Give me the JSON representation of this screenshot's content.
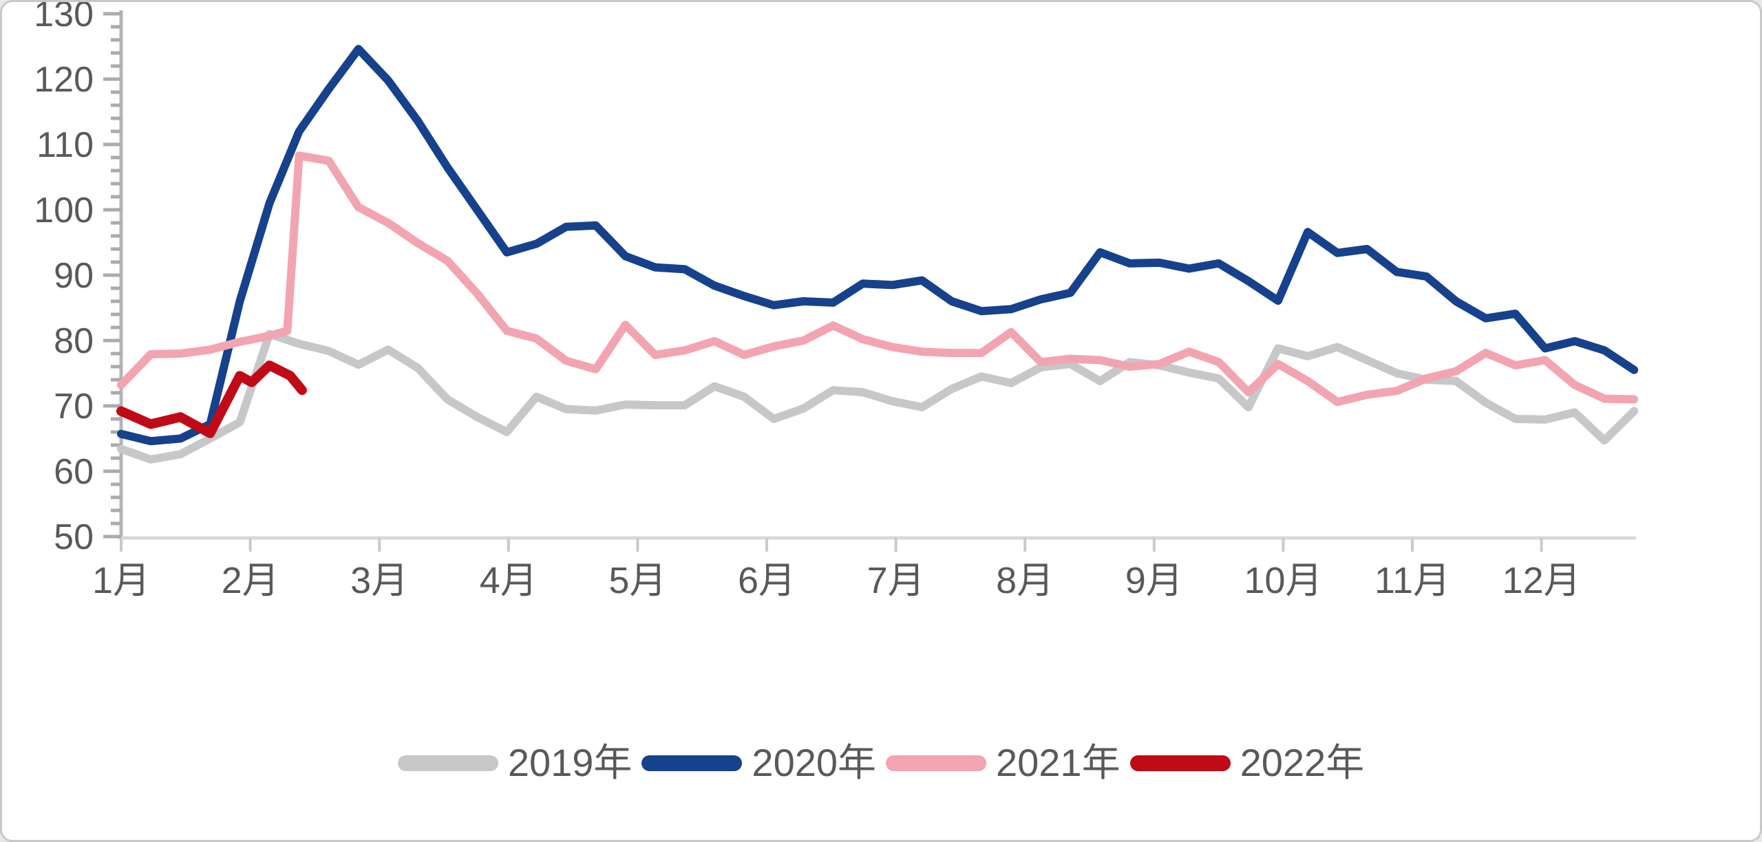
{
  "chart_data": {
    "type": "line",
    "title": "",
    "xlabel": "",
    "ylabel": "",
    "x_axis": {
      "unit": "month",
      "tick_labels": [
        "1月",
        "2月",
        "3月",
        "4月",
        "5月",
        "6月",
        "7月",
        "8月",
        "9月",
        "10月",
        "11月",
        "12月"
      ]
    },
    "y_axis": {
      "min": 50,
      "max": 130,
      "major_step": 10,
      "minor_step": 2,
      "tick_labels": [
        "50",
        "60",
        "70",
        "80",
        "90",
        "100",
        "110",
        "120",
        "130"
      ]
    },
    "grid": "off",
    "legend_position": "bottom-center",
    "sampling": "weekly values, x = week index 0..51 across Jan-Dec",
    "series": [
      {
        "name": "2019年",
        "color": "#c6c7c9",
        "points": [
          [
            0,
            63.4
          ],
          [
            1,
            61.8
          ],
          [
            2,
            62.6
          ],
          [
            3,
            65.0
          ],
          [
            4,
            67.5
          ],
          [
            5,
            81.0
          ],
          [
            6,
            79.5
          ],
          [
            7,
            78.4
          ],
          [
            8,
            76.3
          ],
          [
            9,
            78.6
          ],
          [
            10,
            75.8
          ],
          [
            11,
            71.0
          ],
          [
            12,
            68.3
          ],
          [
            13,
            66.0
          ],
          [
            14,
            71.4
          ],
          [
            15,
            69.5
          ],
          [
            16,
            69.3
          ],
          [
            17,
            70.2
          ],
          [
            18,
            70.1
          ],
          [
            19,
            70.1
          ],
          [
            20,
            73.0
          ],
          [
            21,
            71.4
          ],
          [
            22,
            68.0
          ],
          [
            23,
            69.6
          ],
          [
            24,
            72.4
          ],
          [
            25,
            72.1
          ],
          [
            26,
            70.7
          ],
          [
            27,
            69.8
          ],
          [
            28,
            72.6
          ],
          [
            29,
            74.5
          ],
          [
            30,
            73.5
          ],
          [
            31,
            75.9
          ],
          [
            32,
            76.4
          ],
          [
            33,
            73.8
          ],
          [
            34,
            76.7
          ],
          [
            35,
            76.2
          ],
          [
            36,
            75.1
          ],
          [
            37,
            74.2
          ],
          [
            38,
            69.8
          ],
          [
            39,
            78.8
          ],
          [
            40,
            77.6
          ],
          [
            41,
            79.0
          ],
          [
            42,
            77.0
          ],
          [
            43,
            75.0
          ],
          [
            44,
            74.0
          ],
          [
            45,
            73.8
          ],
          [
            46,
            70.5
          ],
          [
            47,
            68.0
          ],
          [
            48,
            67.9
          ],
          [
            49,
            69.0
          ],
          [
            50,
            64.7
          ],
          [
            51,
            69.2
          ]
        ]
      },
      {
        "name": "2020年",
        "color": "#16418c",
        "points": [
          [
            0,
            65.7
          ],
          [
            1,
            64.6
          ],
          [
            2,
            65.0
          ],
          [
            3,
            67.2
          ],
          [
            4,
            86.0
          ],
          [
            5,
            101.0
          ],
          [
            6,
            112.0
          ],
          [
            7,
            118.5
          ],
          [
            8,
            124.6
          ],
          [
            9,
            119.8
          ],
          [
            10,
            113.6
          ],
          [
            11,
            106.5
          ],
          [
            12,
            100.0
          ],
          [
            13,
            93.5
          ],
          [
            14,
            94.8
          ],
          [
            15,
            97.4
          ],
          [
            16,
            97.6
          ],
          [
            17,
            92.9
          ],
          [
            18,
            91.2
          ],
          [
            19,
            90.9
          ],
          [
            20,
            88.4
          ],
          [
            21,
            86.8
          ],
          [
            22,
            85.4
          ],
          [
            23,
            86.0
          ],
          [
            24,
            85.8
          ],
          [
            25,
            88.7
          ],
          [
            26,
            88.5
          ],
          [
            27,
            89.2
          ],
          [
            28,
            86.0
          ],
          [
            29,
            84.5
          ],
          [
            30,
            84.8
          ],
          [
            31,
            86.3
          ],
          [
            32,
            87.3
          ],
          [
            33,
            93.5
          ],
          [
            34,
            91.8
          ],
          [
            35,
            91.9
          ],
          [
            36,
            91.0
          ],
          [
            37,
            91.8
          ],
          [
            38,
            89.1
          ],
          [
            39,
            86.1
          ],
          [
            40,
            96.6
          ],
          [
            41,
            93.4
          ],
          [
            42,
            94.0
          ],
          [
            43,
            90.5
          ],
          [
            44,
            89.8
          ],
          [
            45,
            86.0
          ],
          [
            46,
            83.4
          ],
          [
            47,
            84.1
          ],
          [
            48,
            78.8
          ],
          [
            49,
            79.9
          ],
          [
            50,
            78.5
          ],
          [
            51,
            75.5
          ]
        ]
      },
      {
        "name": "2021年",
        "color": "#f3a4b1",
        "points": [
          [
            0,
            73.2
          ],
          [
            1,
            77.9
          ],
          [
            2,
            78.0
          ],
          [
            3,
            78.6
          ],
          [
            4,
            79.8
          ],
          [
            5,
            80.7
          ],
          [
            5.6,
            81.5
          ],
          [
            6,
            108.3
          ],
          [
            7,
            107.5
          ],
          [
            8,
            100.4
          ],
          [
            9,
            98.0
          ],
          [
            10,
            94.9
          ],
          [
            11,
            92.2
          ],
          [
            12,
            87.2
          ],
          [
            13,
            81.5
          ],
          [
            14,
            80.3
          ],
          [
            15,
            76.9
          ],
          [
            16,
            75.6
          ],
          [
            17,
            82.4
          ],
          [
            18,
            77.8
          ],
          [
            19,
            78.5
          ],
          [
            20,
            79.9
          ],
          [
            21,
            77.8
          ],
          [
            22,
            79.1
          ],
          [
            23,
            80.0
          ],
          [
            24,
            82.3
          ],
          [
            25,
            80.2
          ],
          [
            26,
            79.0
          ],
          [
            27,
            78.3
          ],
          [
            28,
            78.1
          ],
          [
            29,
            78.1
          ],
          [
            30,
            81.3
          ],
          [
            31,
            76.7
          ],
          [
            32,
            77.2
          ],
          [
            33,
            77.0
          ],
          [
            34,
            76.0
          ],
          [
            35,
            76.4
          ],
          [
            36,
            78.3
          ],
          [
            37,
            76.7
          ],
          [
            38,
            72.1
          ],
          [
            39,
            76.4
          ],
          [
            40,
            73.8
          ],
          [
            41,
            70.6
          ],
          [
            42,
            71.7
          ],
          [
            43,
            72.3
          ],
          [
            44,
            74.2
          ],
          [
            45,
            75.3
          ],
          [
            46,
            78.1
          ],
          [
            47,
            76.2
          ],
          [
            48,
            77.0
          ],
          [
            49,
            73.2
          ],
          [
            50,
            71.1
          ],
          [
            51,
            71.0
          ]
        ]
      },
      {
        "name": "2022年",
        "color": "#c00a16",
        "points": [
          [
            0,
            69.2
          ],
          [
            1,
            67.2
          ],
          [
            2,
            68.3
          ],
          [
            3,
            65.8
          ],
          [
            4,
            74.6
          ],
          [
            4.4,
            73.6
          ],
          [
            5,
            76.2
          ],
          [
            5.7,
            74.6
          ],
          [
            6.1,
            72.4
          ]
        ]
      }
    ]
  },
  "legend": {
    "items": [
      {
        "label": "2019年",
        "color": "#c6c7c9"
      },
      {
        "label": "2020年",
        "color": "#16418c"
      },
      {
        "label": "2021年",
        "color": "#f3a4b1"
      },
      {
        "label": "2022年",
        "color": "#c00a16"
      }
    ]
  },
  "style_colors": {
    "axis_line": "#d8d9da",
    "y_axis_line": "#b3b6b8",
    "tick": "#a9abad",
    "x_tick": "#c9cacc",
    "label_text": "#58595b",
    "background": "#ffffff"
  }
}
